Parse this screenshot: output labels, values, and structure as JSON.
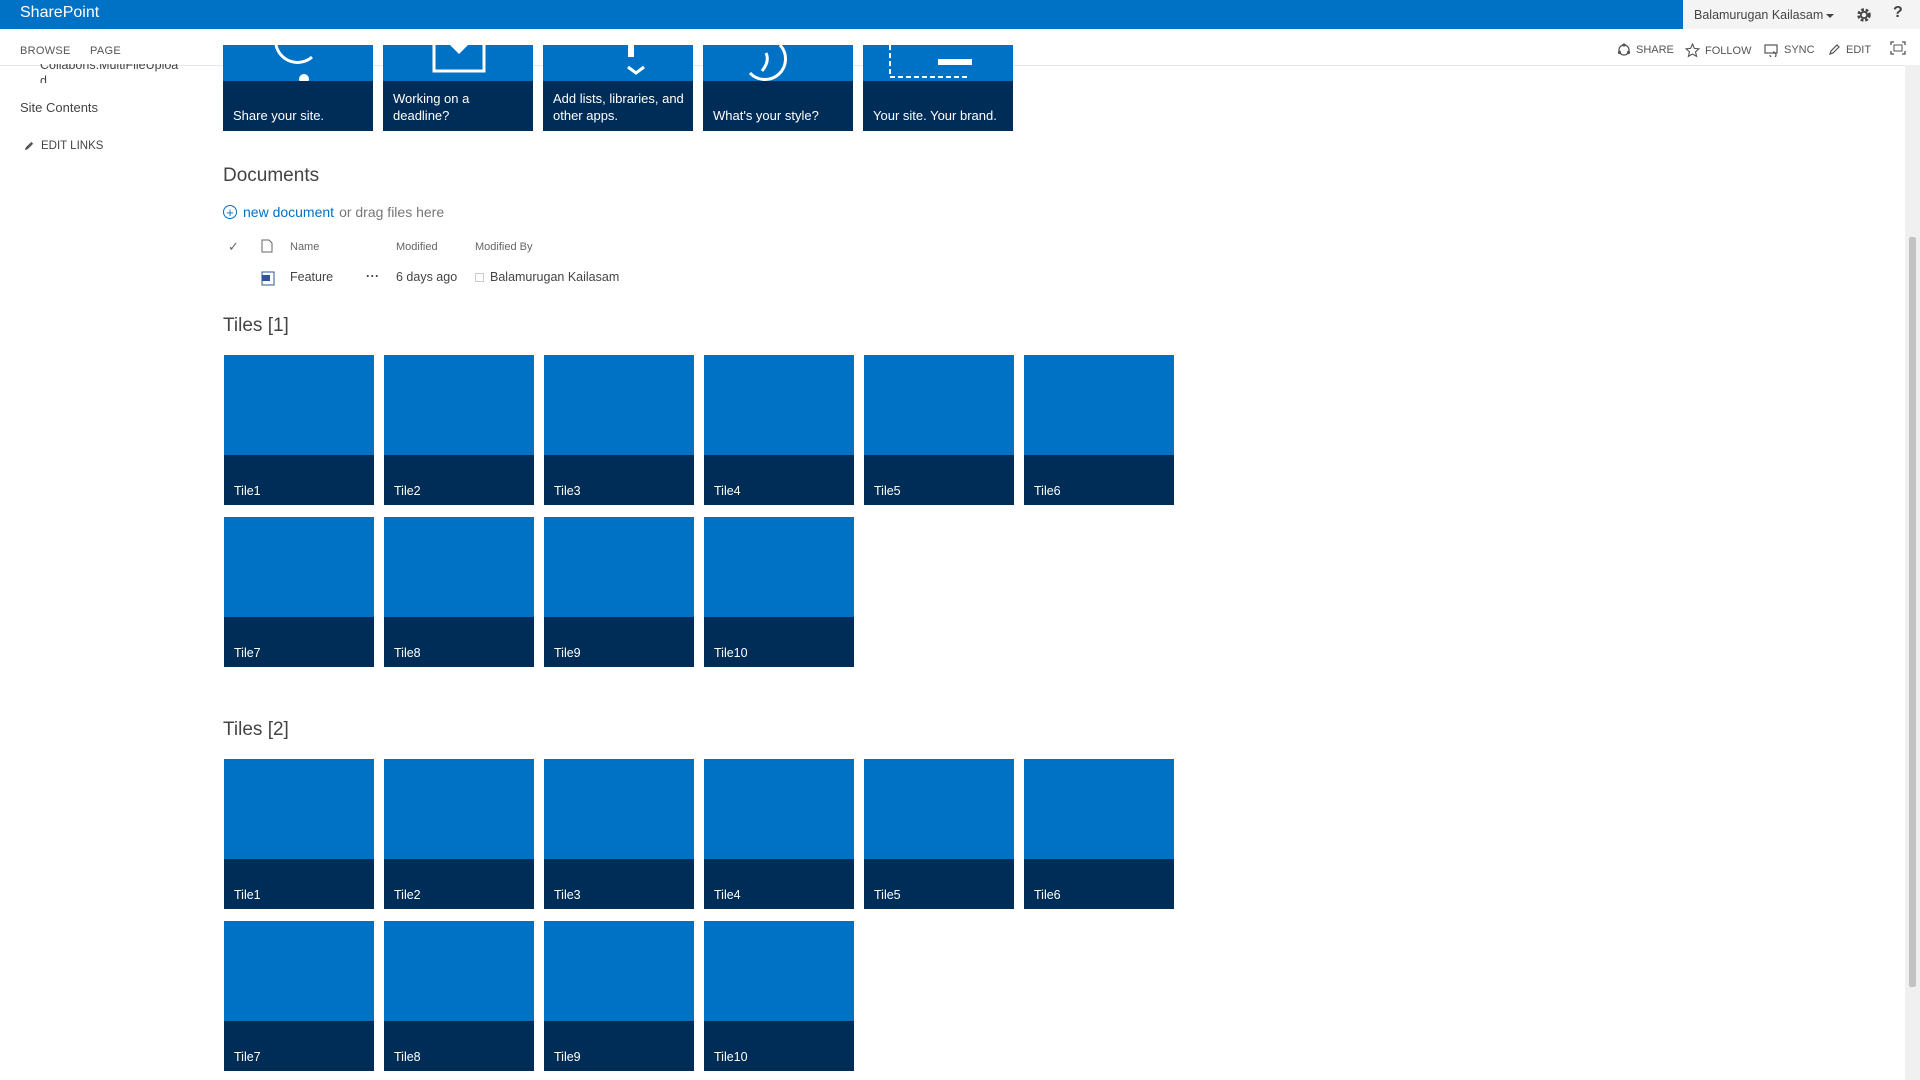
{
  "suitebar": {
    "brand": "SharePoint",
    "user": "Balamurugan Kailasam",
    "colors": {
      "brand": "#0072c6",
      "tile": "#0072c6",
      "tile_band": "#002d57"
    }
  },
  "ribbon": {
    "tabs": [
      "BROWSE",
      "PAGE"
    ],
    "actions": [
      "SHARE",
      "FOLLOW",
      "SYNC",
      "EDIT"
    ]
  },
  "leftnav": {
    "truncated_item": "Collabons.MultiFileUpload",
    "site_contents": "Site Contents",
    "edit_links": "EDIT LINKS"
  },
  "promo_tiles": [
    {
      "label": "Share your site.",
      "icon": "share-icon"
    },
    {
      "label": "Working on a deadline?",
      "icon": "mail-icon"
    },
    {
      "label": "Add lists, libraries, and other apps.",
      "icon": "app-icon"
    },
    {
      "label": "What's your style?",
      "icon": "style-icon"
    },
    {
      "label": "Your site. Your brand.",
      "icon": "brand-icon"
    }
  ],
  "documents": {
    "title": "Documents",
    "new_document": "new document",
    "drag_text": "or drag files here",
    "columns": {
      "name": "Name",
      "modified": "Modified",
      "modified_by": "Modified By"
    },
    "rows": [
      {
        "name": "Feature",
        "modified": "6 days ago",
        "modified_by": "Balamurugan Kailasam",
        "more": "..."
      }
    ]
  },
  "tiles_sections": [
    {
      "title": "Tiles [1]",
      "tiles": [
        "Tile1",
        "Tile2",
        "Tile3",
        "Tile4",
        "Tile5",
        "Tile6",
        "Tile7",
        "Tile8",
        "Tile9",
        "Tile10"
      ]
    },
    {
      "title": "Tiles [2]",
      "tiles": [
        "Tile1",
        "Tile2",
        "Tile3",
        "Tile4",
        "Tile5",
        "Tile6",
        "Tile7",
        "Tile8",
        "Tile9",
        "Tile10"
      ]
    }
  ]
}
